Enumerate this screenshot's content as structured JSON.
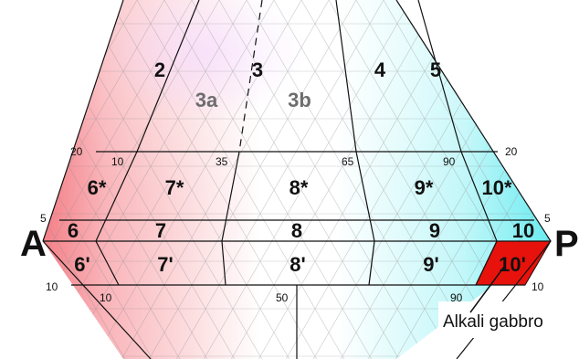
{
  "vertices": {
    "left": "A",
    "right": "P"
  },
  "upper_field_labels": [
    "2",
    "3",
    "4",
    "5"
  ],
  "upper_subfield_labels": [
    "3a",
    "3b"
  ],
  "star_field_labels": [
    "6*",
    "7*",
    "8*",
    "9*",
    "10*"
  ],
  "mid_field_labels": [
    "6",
    "7",
    "8",
    "9",
    "10"
  ],
  "prime_field_labels": [
    "6'",
    "7'",
    "8'",
    "9'",
    "10'"
  ],
  "upper_line_ticks": {
    "left": "20",
    "right": "20",
    "t10": "10",
    "t35": "35",
    "t65": "65",
    "t90": "90"
  },
  "band_ticks": {
    "left": "5",
    "right": "5"
  },
  "lower_line_ticks": {
    "left": "10",
    "right": "10",
    "t10": "10",
    "t50": "50",
    "t90": "90"
  },
  "annotation": "Alkali gabbro",
  "colors": {
    "alkali_feldspar_pink": "#f05a64",
    "plagioclase_cyan": "#4fe8ee",
    "highlight_red": "#e8120c",
    "line": "#111111",
    "tick_text": "#111111",
    "subfield_grey": "#6d6d6d"
  }
}
